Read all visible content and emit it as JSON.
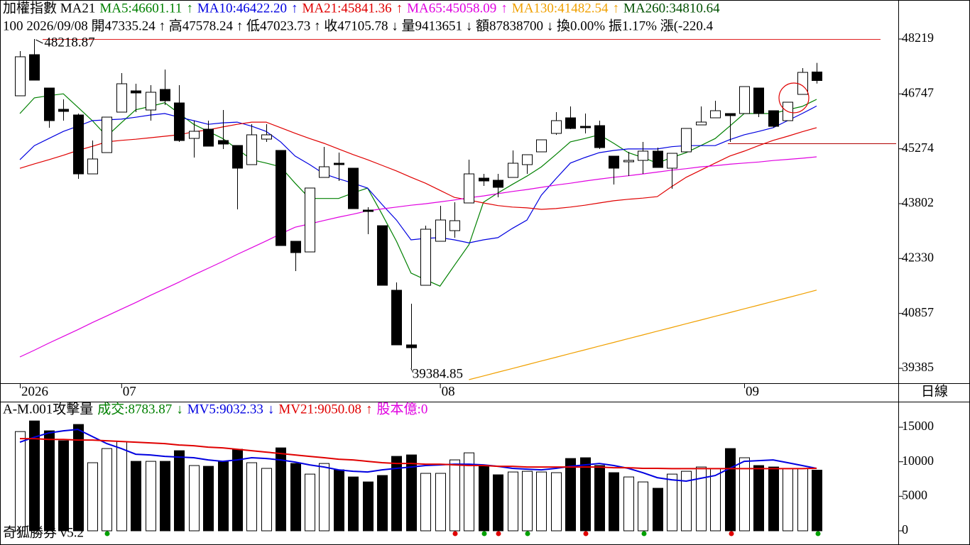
{
  "chart_data": {
    "type": "candlestick",
    "indicator": "加權指數 MA21",
    "info": "100 2026/09/08 開47335.24 ↑ 高47578.24 ↑ 低47023.73 ↑ 收47105.78 ↓ 量9413651 ↓ 額87838700 ↓ 換0.00% 振1.17% 漲(-220.4",
    "period": "日線",
    "categories": [
      "2026",
      null,
      null,
      null,
      null,
      null,
      null,
      "07",
      null,
      null,
      null,
      null,
      null,
      null,
      null,
      null,
      null,
      null,
      null,
      null,
      null,
      null,
      null,
      null,
      null,
      null,
      null,
      null,
      null,
      "08",
      null,
      null,
      null,
      null,
      null,
      null,
      null,
      null,
      null,
      null,
      null,
      null,
      null,
      null,
      null,
      null,
      null,
      null,
      null,
      null,
      "09",
      null,
      null,
      null,
      null,
      null
    ],
    "open": [
      46696,
      47800,
      46905,
      46334,
      46182,
      44601,
      45172,
      46258,
      46829,
      46315,
      46867,
      46505,
      45553,
      45801,
      45496,
      45363,
      44849,
      45534,
      45230,
      42793,
      42507,
      44506,
      44887,
      44754,
      43630,
      43211,
      41479,
      40013,
      41612,
      42793,
      43078,
      43821,
      44487,
      44430,
      44506,
      44849,
      45192,
      45687,
      46105,
      45877,
      45896,
      45077,
      44925,
      44963,
      45211,
      44754,
      45192,
      45915,
      46105,
      46220,
      46220,
      46905,
      46296,
      46029,
      46734,
      47335.24
    ],
    "high": [
      47895,
      48218.87,
      46905,
      46601,
      46220,
      45496,
      46124,
      47305,
      47019,
      46981,
      47400,
      46981,
      46029,
      46029,
      46315,
      45363,
      45934,
      45934,
      45230,
      42793,
      44221,
      45325,
      45172,
      44754,
      43707,
      43211,
      41688,
      41117,
      43211,
      43745,
      43840,
      44982,
      44601,
      44601,
      45230,
      45115,
      45515,
      46258,
      46410,
      46220,
      46029,
      45077,
      45192,
      45458,
      45306,
      45153,
      45820,
      46410,
      46563,
      46220,
      46943,
      46905,
      46296,
      46524,
      47438,
      47578.24
    ],
    "low": [
      46696,
      47115,
      45839,
      46029,
      44468,
      44601,
      45172,
      46258,
      46258,
      46029,
      46448,
      45458,
      45039,
      45344,
      45268,
      43649,
      44849,
      45458,
      42678,
      41993,
      42507,
      44506,
      44411,
      43668,
      42983,
      41612,
      40013,
      39384.85,
      41612,
      42793,
      42888,
      43821,
      44278,
      43973,
      44506,
      44601,
      45192,
      45649,
      45801,
      45687,
      45268,
      44316,
      44544,
      44601,
      44773,
      44202,
      45192,
      45915,
      46105,
      45458,
      46220,
      46124,
      45839,
      46029,
      46734,
      47023.73
    ],
    "close": [
      47743,
      47115,
      46029,
      46277,
      44601,
      45001,
      46124,
      47019,
      46772,
      46791,
      46563,
      45496,
      45744,
      45344,
      45401,
      44754,
      45649,
      45649,
      42678,
      42488,
      44221,
      44792,
      44849,
      43668,
      43592,
      41612,
      40013,
      39937,
      43116,
      43364,
      43345,
      44601,
      44411,
      44240,
      44887,
      45115,
      45515,
      46029,
      45820,
      45839,
      45306,
      44754,
      44963,
      45211,
      44773,
      45153,
      45820,
      45991,
      46296,
      46163,
      46943,
      46220,
      45877,
      46524,
      47324,
      47105.78
    ],
    "up_color": "#ffffff",
    "down_color": "#000000",
    "ylim": [
      38985,
      49266
    ],
    "yticks": [
      48219,
      46747,
      45274,
      43802,
      42330,
      40857,
      39385
    ],
    "high_label": "48218.87",
    "low_label": "39384.85",
    "reference_lines": [
      {
        "value": 48218.87,
        "color": "#e02020"
      },
      {
        "value": 45420,
        "color": "#b00000"
      }
    ],
    "overlays": [
      {
        "label": "MA5:46601.11",
        "arrow": "↑",
        "color": "#008000",
        "values": [
          46220,
          46640,
          46700,
          46750,
          46390,
          46030,
          45610,
          45970,
          46320,
          46410,
          46510,
          46220,
          45930,
          45740,
          45550,
          45270,
          44980,
          44890,
          44790,
          44350,
          43940,
          43940,
          43940,
          44090,
          44220,
          43520,
          42790,
          41940,
          41760,
          41590,
          42150,
          42700,
          43840,
          44090,
          44320,
          44540,
          44790,
          45120,
          45460,
          45550,
          45650,
          45420,
          45170,
          45040,
          44890,
          45040,
          45170,
          45360,
          45550,
          45880,
          46220,
          46220,
          46220,
          46320,
          46410,
          46601.11
        ]
      },
      {
        "label": "MA10:46422.20",
        "arrow": "↑",
        "color": "#0000e0",
        "values": [
          44980,
          45360,
          45550,
          45740,
          45880,
          46030,
          46050,
          46070,
          46120,
          46180,
          46220,
          46120,
          46030,
          45930,
          45970,
          45990,
          45880,
          45740,
          45460,
          45080,
          44850,
          44600,
          44470,
          44350,
          44220,
          43780,
          43360,
          42830,
          42870,
          42890,
          42830,
          42750,
          42830,
          42890,
          43140,
          43360,
          44030,
          44470,
          44890,
          45040,
          45170,
          45230,
          45270,
          45270,
          45270,
          45330,
          45360,
          45360,
          45360,
          45520,
          45650,
          45740,
          45840,
          46030,
          46220,
          46422.2
        ]
      },
      {
        "label": "MA21:45841.36",
        "arrow": "↑",
        "color": "#e00000",
        "values": [
          44750,
          44870,
          44980,
          45100,
          45230,
          45340,
          45460,
          45500,
          45530,
          45570,
          45610,
          45650,
          45730,
          45780,
          45860,
          45930,
          45990,
          45990,
          45840,
          45690,
          45550,
          45420,
          45270,
          45120,
          44980,
          44830,
          44680,
          44510,
          44350,
          44160,
          43970,
          43900,
          43820,
          43750,
          43710,
          43690,
          43650,
          43670,
          43710,
          43760,
          43820,
          43880,
          43920,
          43950,
          43990,
          44260,
          44510,
          44700,
          44890,
          45080,
          45210,
          45360,
          45500,
          45610,
          45730,
          45841.36
        ]
      },
      {
        "label": "MA65:45058.09",
        "arrow": "↑",
        "color": "#e000e0",
        "values": [
          39690,
          39870,
          40060,
          40240,
          40420,
          40610,
          40790,
          40970,
          41150,
          41340,
          41520,
          41700,
          41890,
          42070,
          42250,
          42440,
          42620,
          42800,
          42990,
          43170,
          43260,
          43350,
          43440,
          43520,
          43610,
          43660,
          43710,
          43760,
          43800,
          43850,
          43900,
          43960,
          44010,
          44070,
          44130,
          44180,
          44240,
          44300,
          44350,
          44410,
          44460,
          44510,
          44550,
          44600,
          44650,
          44700,
          44740,
          44790,
          44820,
          44860,
          44890,
          44920,
          44960,
          44990,
          45020,
          45058.09
        ]
      },
      {
        "label": "MA130:41482.54",
        "arrow": "↑",
        "color": "#f0a000",
        "values": [
          null,
          null,
          null,
          null,
          null,
          null,
          null,
          null,
          null,
          null,
          null,
          null,
          null,
          null,
          null,
          null,
          null,
          null,
          null,
          null,
          null,
          null,
          null,
          null,
          null,
          null,
          null,
          null,
          null,
          null,
          null,
          39080,
          39180,
          39280,
          39380,
          39480,
          39580,
          39680,
          39780,
          39880,
          39980,
          40080,
          40180,
          40280,
          40380,
          40480,
          40580,
          40680,
          40780,
          40880,
          40980,
          41080,
          41180,
          41280,
          41380,
          41482.54
        ]
      },
      {
        "label": "MA260:34810.64",
        "color": "#005000"
      }
    ],
    "volume": {
      "title": "A-M.001攻擊量",
      "values": [
        14370,
        15910,
        14480,
        13040,
        15400,
        9860,
        11910,
        12940,
        10060,
        10060,
        10060,
        11600,
        9450,
        9340,
        10060,
        11810,
        9860,
        9040,
        12010,
        9750,
        8210,
        9750,
        8830,
        7800,
        7080,
        8010,
        10780,
        10990,
        8320,
        8320,
        10270,
        11290,
        9450,
        8110,
        8520,
        8620,
        8520,
        8420,
        10470,
        10580,
        9450,
        8420,
        7800,
        7080,
        6160,
        8210,
        8620,
        9240,
        9040,
        11910,
        10580,
        9450,
        9240,
        9040,
        9040,
        8783.87
      ],
      "ylim": [
        -1850,
        18600
      ],
      "yticks": [
        15000,
        10000,
        5000,
        0
      ],
      "items": [
        {
          "label": "成交:8783.87",
          "arrow": "↓",
          "color": "#008000"
        },
        {
          "label": "MV5:9032.33",
          "arrow": "↓",
          "color": "#0000e0",
          "values": [
            12830,
            13550,
            14170,
            14480,
            14680,
            13660,
            12630,
            11910,
            11090,
            10990,
            10780,
            10680,
            10580,
            10270,
            10060,
            10270,
            10580,
            10470,
            10270,
            9960,
            9550,
            9240,
            8830,
            8620,
            8520,
            8830,
            9040,
            9240,
            9450,
            9550,
            9650,
            9650,
            9550,
            9340,
            9040,
            8930,
            8830,
            9040,
            9340,
            9550,
            9750,
            9450,
            9040,
            8420,
            7700,
            7390,
            7190,
            7600,
            8010,
            9040,
            10060,
            10160,
            10270,
            9860,
            9450,
            9032.33
          ]
        },
        {
          "label": "MV21:9050.08",
          "arrow": "↑",
          "color": "#e00000",
          "values": [
            13350,
            13350,
            13240,
            13240,
            13140,
            13140,
            13040,
            12940,
            12830,
            12730,
            12630,
            12420,
            12320,
            12120,
            12010,
            11810,
            11600,
            11400,
            11190,
            10990,
            10780,
            10580,
            10370,
            10270,
            10060,
            9860,
            9750,
            9750,
            9650,
            9650,
            9550,
            9450,
            9450,
            9340,
            9340,
            9240,
            9240,
            9240,
            9240,
            9240,
            9240,
            9140,
            9140,
            9040,
            9040,
            9000,
            9000,
            9000,
            9000,
            9000,
            9000,
            9000,
            9000,
            9000,
            9000,
            9050.08
          ]
        },
        {
          "label": "股本億:0",
          "color": "#e000e0"
        }
      ]
    },
    "footer": "奇狐勝券 v5.2"
  }
}
